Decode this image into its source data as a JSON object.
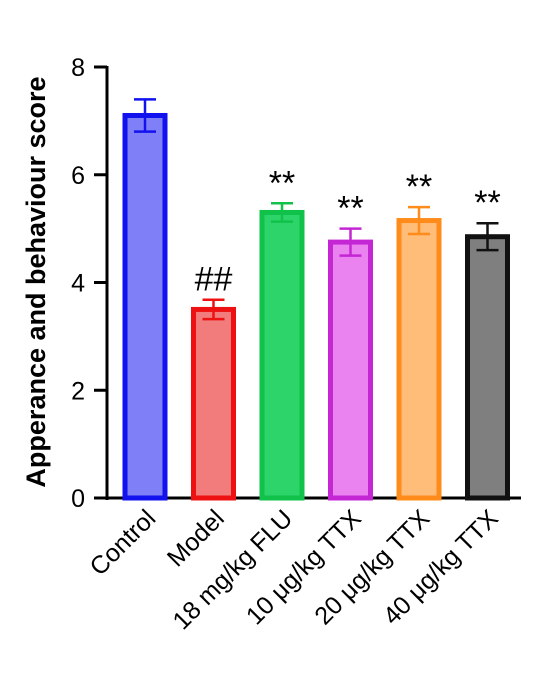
{
  "chart_data": {
    "type": "bar",
    "title": "",
    "xlabel": "",
    "ylabel": "Apperance and behaviour score",
    "ylim": [
      0,
      8
    ],
    "yticks": [
      "0",
      "2",
      "4",
      "6",
      "8"
    ],
    "grid": false,
    "categories": [
      "Control",
      "Model",
      "18 mg/kg FLU",
      "10 μg/kg TTX",
      "20 μg/kg TTX",
      "40 μg/kg TTX"
    ],
    "values": [
      7.1,
      3.5,
      5.3,
      4.75,
      5.15,
      4.85
    ],
    "errors": [
      0.3,
      0.18,
      0.17,
      0.25,
      0.25,
      0.25
    ],
    "significance": [
      "",
      "##",
      "**",
      "**",
      "**",
      "**"
    ],
    "colors": {
      "fill": [
        "#7f7ff7",
        "#f27b7b",
        "#2dd46a",
        "#ea82ef",
        "#ffbd79",
        "#7f7f7f"
      ],
      "stroke": [
        "#1212ee",
        "#ee1111",
        "#10c24a",
        "#c426d4",
        "#ff8c1a",
        "#111111"
      ]
    }
  }
}
